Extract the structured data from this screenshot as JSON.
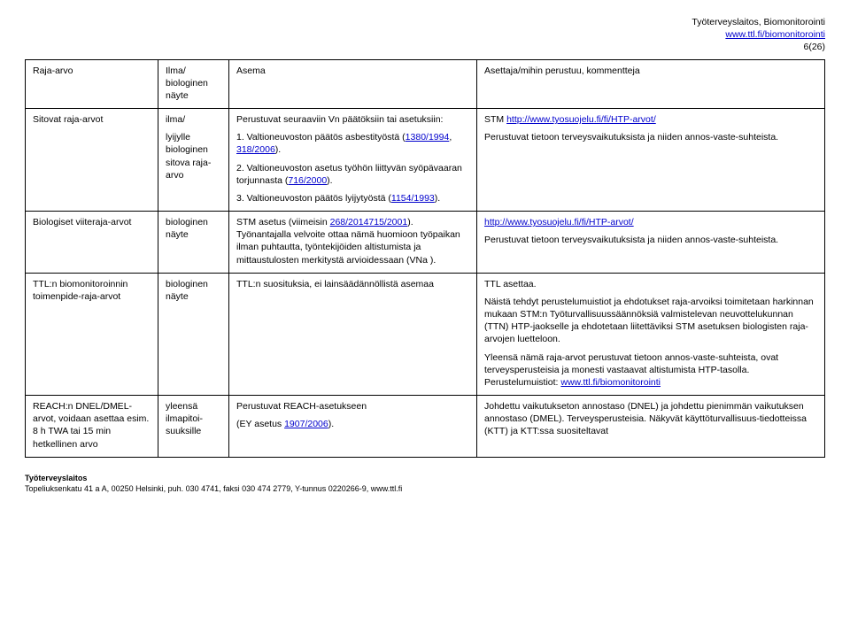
{
  "header": {
    "org": "Työterveyslaitos, Biomonitorointi",
    "url_label": "www.ttl.fi/biomonitorointi",
    "page_no": "6(26)"
  },
  "table": {
    "head": {
      "c1": "Raja-arvo",
      "c2": "Ilma/ biologinen näyte",
      "c3": "Asema",
      "c4": "Asettaja/mihin perustuu, kommentteja"
    },
    "rows": [
      {
        "c1": "Sitovat raja-arvot",
        "c2": "ilma/\nlyijylle biologinen sitova raja-arvo",
        "c3": [
          "Perustuvat seuraaviin Vn päätöksiin tai asetuksiin:",
          {
            "pre": "1. Valtioneuvoston päätös asbestityöstä (",
            "link": "1380/1994",
            "mid": ", ",
            "link2": "318/2006",
            "post": ")."
          },
          {
            "pre": "2. Valtioneuvoston asetus työhön liittyvän syöpävaaran torjunnasta (",
            "link": "716/2000",
            "post": ")."
          },
          {
            "pre": "3. Valtioneuvoston päätös lyijytyöstä (",
            "link": "1154/1993",
            "post": ")."
          }
        ],
        "c4": [
          {
            "pre": "STM ",
            "link": "http://www.tyosuojelu.fi/fi/HTP-arvot/"
          },
          "Perustuvat tietoon terveysvaikutuksista ja niiden annos-vaste-suhteista."
        ]
      },
      {
        "c1": "Biologiset viiteraja-arvot",
        "c2": "biologinen näyte",
        "c3": [
          {
            "pre": "STM asetus (viimeisin ",
            "link": "268/2014",
            "post": "). Työnantajalla velvoite ottaa nämä huomioon työpaikan ilman puhtautta, työntekijöiden altistumista ja mittaustulosten merkitystä arvioidessaan (VNa ",
            "link2": "715/2001",
            "post2": ")."
          }
        ],
        "c4": [
          {
            "link": "http://www.tyosuojelu.fi/fi/HTP-arvot/"
          },
          "Perustuvat tietoon terveysvaikutuksista ja niiden annos-vaste-suhteista."
        ]
      },
      {
        "c1": "TTL:n biomonitoroinnin toimenpide-raja-arvot",
        "c2": "biologinen näyte",
        "c3": [
          "TTL:n suosituksia, ei lainsäädännöllistä asemaa"
        ],
        "c4": [
          "TTL asettaa.",
          "Näistä tehdyt perustelumuistiot ja ehdotukset raja-arvoiksi toimitetaan harkinnan mukaan STM:n Työturvallisuussäännöksiä valmistelevan neuvottelukunnan (TTN) HTP-jaokselle ja ehdotetaan liitettäviksi STM asetuksen biologisten raja-arvojen luetteloon.",
          {
            "pre": "Yleensä nämä raja-arvot perustuvat tietoon annos-vaste-suhteista, ovat terveysperusteisia ja monesti vastaavat altistumista HTP-tasolla. Perustelumuistiot: ",
            "link": "www.ttl.fi/biomonitorointi"
          }
        ]
      },
      {
        "c1": "REACH:n DNEL/DMEL-arvot, voidaan asettaa esim. 8 h TWA tai 15 min hetkellinen arvo",
        "c2": "yleensä ilmapitoi-suuksille",
        "c3": [
          "Perustuvat REACH-asetukseen",
          {
            "pre": "(EY asetus ",
            "link": "1907/2006",
            "post": ")."
          }
        ],
        "c4": [
          "Johdettu vaikutukseton annostaso (DNEL) ja johdettu pienimmän vaikutuksen annostaso (DMEL). Terveysperusteisia. Näkyvät käyttöturvallisuus-tiedotteissa (KTT) ja KTT:ssa suositeltavat"
        ]
      }
    ]
  },
  "footer": {
    "line1": "Työterveyslaitos",
    "line2": "Topeliuksenkatu 41 a A, 00250 Helsinki, puh. 030 4741, faksi 030 474 2779, Y-tunnus 0220266-9, www.ttl.fi"
  },
  "colors": {
    "link": "#0000cc",
    "text": "#000000",
    "border": "#000000",
    "background": "#ffffff"
  }
}
